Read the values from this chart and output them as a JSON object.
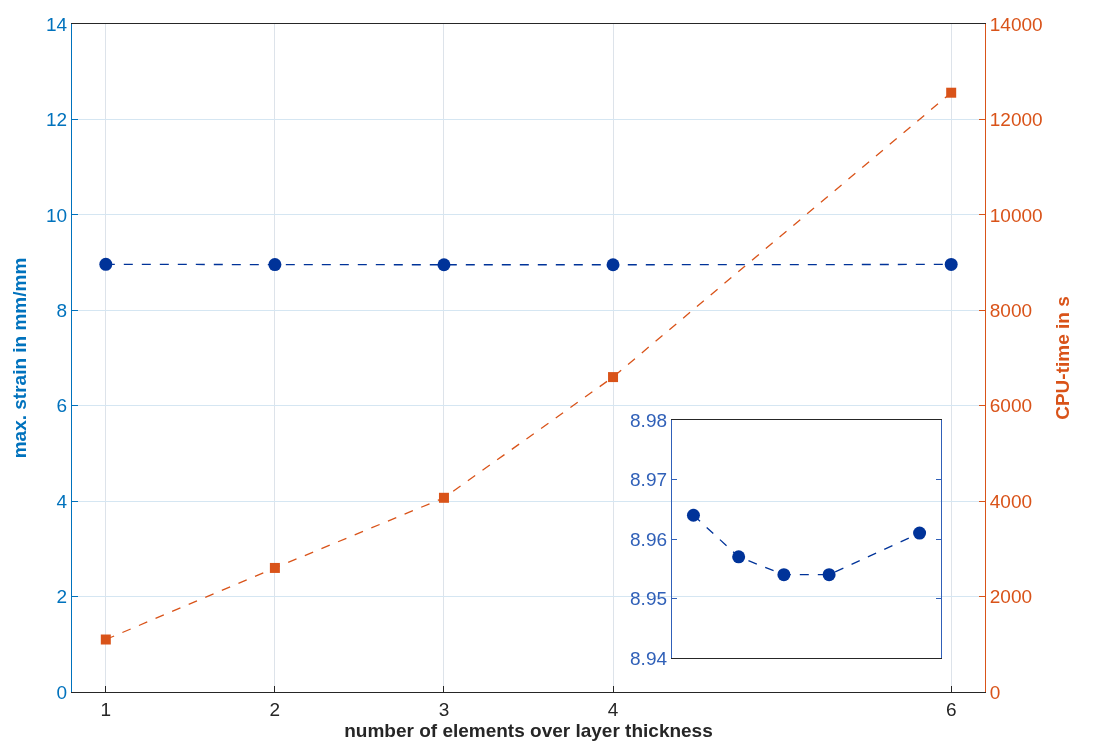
{
  "chart_data": [
    {
      "type": "line",
      "xlabel": "number of elements over layer thickness",
      "ylabel": "max. strain in mm/mm",
      "y2label": "CPU-time in s",
      "x": [
        1,
        2,
        3,
        4,
        6
      ],
      "xlim": [
        0.8,
        6.2
      ],
      "xticks": [
        1,
        2,
        3,
        4,
        6
      ],
      "ylim": [
        0,
        14
      ],
      "yticks": [
        0,
        2,
        4,
        6,
        8,
        10,
        12,
        14
      ],
      "y2lim": [
        0,
        14000
      ],
      "y2ticks": [
        0,
        2000,
        4000,
        6000,
        8000,
        10000,
        12000,
        14000
      ],
      "grid": true,
      "line_style": "dashed",
      "series": [
        {
          "color": "#003399",
          "values": [
            8.964,
            8.957,
            8.954,
            8.954,
            8.961
          ],
          "marker": "circle"
        },
        {
          "color": "#d95319",
          "values": [
            1100,
            2600,
            4070,
            6600,
            12560
          ],
          "axis": "y2",
          "marker": "square"
        }
      ]
    },
    {
      "type": "line",
      "categories": [
        null,
        null,
        null,
        null,
        null,
        null
      ],
      "ylim": [
        8.94,
        8.98
      ],
      "yticks": [
        8.94,
        8.95,
        8.96,
        8.97,
        8.98
      ],
      "tick_labels": "y",
      "line_style": "dashed",
      "series": [
        {
          "color": "#003399",
          "values": [
            8.964,
            8.957,
            8.954,
            8.954,
            null,
            8.961
          ],
          "marker": "circle"
        }
      ]
    }
  ]
}
